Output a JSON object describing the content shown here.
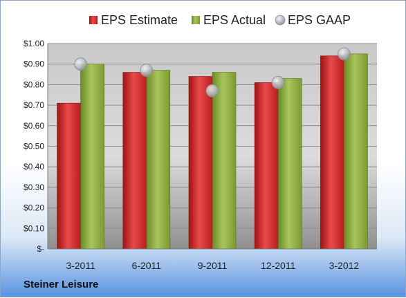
{
  "company": "Steiner Leisure",
  "colors": {
    "estimate": "#d42a2a",
    "actual": "#8fae3e",
    "gaap": "#b8bcc4",
    "plot_background": "#d6d6d6"
  },
  "chart_data": {
    "type": "bar",
    "title": "",
    "xlabel": "",
    "ylabel": "",
    "categories": [
      "3-2011",
      "6-2011",
      "9-2011",
      "12-2011",
      "3-2012"
    ],
    "ylim": [
      0,
      1.0
    ],
    "yticks": [
      0,
      0.1,
      0.2,
      0.3,
      0.4,
      0.5,
      0.6,
      0.7,
      0.8,
      0.9,
      1.0
    ],
    "ytick_labels": [
      "$-",
      "$0.10",
      "$0.20",
      "$0.30",
      "$0.40",
      "$0.50",
      "$0.60",
      "$0.70",
      "$0.80",
      "$0.90",
      "$1.00"
    ],
    "grid": true,
    "legend": "top",
    "series": [
      {
        "name": "EPS Estimate",
        "kind": "bar",
        "values": [
          0.71,
          0.86,
          0.84,
          0.81,
          0.94
        ]
      },
      {
        "name": "EPS Actual",
        "kind": "bar",
        "values": [
          0.9,
          0.87,
          0.86,
          0.83,
          0.95
        ]
      },
      {
        "name": "EPS GAAP",
        "kind": "marker",
        "values": [
          0.9,
          0.87,
          0.77,
          0.81,
          0.95
        ]
      }
    ]
  }
}
